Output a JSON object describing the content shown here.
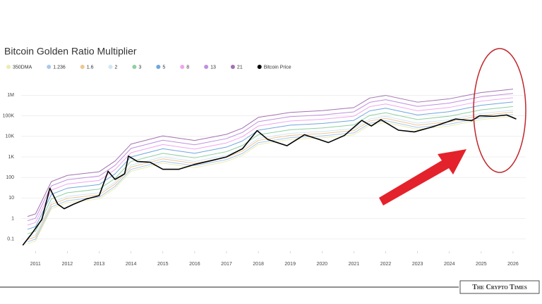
{
  "chart_data": {
    "type": "line",
    "title": "Bitcoin Golden Ratio Multiplier",
    "yscale": "log",
    "grid": true,
    "legend": "top-left",
    "xlim": [
      2010.55,
      2026.4
    ],
    "xticks": [
      2011,
      2012,
      2013,
      2014,
      2015,
      2016,
      2017,
      2018,
      2019,
      2020,
      2021,
      2022,
      2023,
      2024,
      2025,
      2026
    ],
    "ylim": [
      0.03,
      5000000
    ],
    "yticks": [
      0.1,
      1,
      10,
      100,
      {
        "value": 1000,
        "label": "1K"
      },
      {
        "value": 10000,
        "label": "10K"
      },
      {
        "value": 100000,
        "label": "100K"
      },
      {
        "value": 1000000,
        "label": "1M"
      }
    ],
    "x": [
      2010.75,
      2011,
      2011.5,
      2012,
      2013,
      2013.5,
      2014,
      2015,
      2016,
      2017,
      2017.5,
      2018,
      2019,
      2020,
      2021,
      2021.5,
      2022,
      2023,
      2024,
      2025,
      2026
    ],
    "series": [
      {
        "name": "350DMA",
        "color": "#e9eeb0",
        "values": [
          0.06,
          0.08,
          3,
          6,
          9,
          30,
          200,
          500,
          300,
          600,
          1200,
          4000,
          7000,
          8500,
          12000,
          35000,
          47000,
          22000,
          32000,
          65000,
          95000
        ]
      },
      {
        "name": "1.236",
        "color": "#a9c8ef",
        "values": [
          0.074,
          0.099,
          3.7,
          7.4,
          11,
          37,
          247,
          618,
          371,
          742,
          1483,
          4944,
          8652,
          10506,
          14832,
          43260,
          58092,
          27192,
          39552,
          80340,
          117420
        ]
      },
      {
        "name": "1.6",
        "color": "#efc791",
        "values": [
          0.096,
          0.128,
          4.8,
          9.6,
          14.4,
          48,
          320,
          800,
          480,
          960,
          1920,
          6400,
          11200,
          13600,
          19200,
          56000,
          75200,
          35200,
          51200,
          104000,
          152000
        ]
      },
      {
        "name": "2",
        "color": "#cfe6f6",
        "values": [
          0.12,
          0.16,
          6,
          12,
          18,
          60,
          400,
          1000,
          600,
          1200,
          2400,
          8000,
          14000,
          17000,
          24000,
          70000,
          94000,
          44000,
          64000,
          130000,
          190000
        ]
      },
      {
        "name": "3",
        "color": "#8fd0a0",
        "values": [
          0.18,
          0.24,
          9,
          18,
          27,
          90,
          600,
          1500,
          900,
          1800,
          3600,
          12000,
          21000,
          25500,
          36000,
          105000,
          141000,
          66000,
          96000,
          195000,
          285000
        ]
      },
      {
        "name": "5",
        "color": "#6fa7df",
        "values": [
          0.3,
          0.4,
          15,
          30,
          45,
          150,
          1000,
          2500,
          1500,
          3000,
          6000,
          20000,
          35000,
          42500,
          60000,
          175000,
          235000,
          110000,
          160000,
          325000,
          475000
        ]
      },
      {
        "name": "8",
        "color": "#efa6ef",
        "values": [
          0.48,
          0.64,
          24,
          48,
          72,
          240,
          1600,
          4000,
          2400,
          4800,
          9600,
          32000,
          56000,
          68000,
          96000,
          280000,
          376000,
          176000,
          256000,
          520000,
          760000
        ]
      },
      {
        "name": "13",
        "color": "#c08fe0",
        "values": [
          0.78,
          1.04,
          39,
          78,
          117,
          390,
          2600,
          6500,
          3900,
          7800,
          15600,
          52000,
          91000,
          110500,
          156000,
          455000,
          611000,
          286000,
          416000,
          845000,
          1235000
        ]
      },
      {
        "name": "21",
        "color": "#a271b1",
        "values": [
          1.26,
          1.68,
          63,
          126,
          189,
          630,
          4200,
          10500,
          6300,
          12600,
          25200,
          84000,
          147000,
          178500,
          252000,
          735000,
          987000,
          462000,
          672000,
          1365000,
          1995000
        ]
      },
      {
        "name": "Bitcoin Price",
        "color": "#000000",
        "x": [
          2010.6,
          2010.9,
          2011.2,
          2011.45,
          2011.7,
          2011.9,
          2012.2,
          2012.6,
          2013.0,
          2013.28,
          2013.5,
          2013.8,
          2013.92,
          2014.2,
          2014.6,
          2015.0,
          2015.5,
          2016.0,
          2016.5,
          2017.0,
          2017.5,
          2017.96,
          2018.3,
          2018.9,
          2019.45,
          2019.9,
          2020.2,
          2020.7,
          2021.25,
          2021.55,
          2021.85,
          2022.4,
          2022.9,
          2023.5,
          2024.2,
          2024.7,
          2024.95,
          2025.4,
          2025.8,
          2026.1
        ],
        "values": [
          0.05,
          0.2,
          0.9,
          30,
          5,
          3,
          5,
          9,
          13,
          200,
          80,
          150,
          1100,
          600,
          550,
          250,
          250,
          430,
          650,
          1000,
          2500,
          19000,
          7000,
          3500,
          12000,
          7200,
          5000,
          11000,
          60000,
          32000,
          65000,
          20000,
          16500,
          30000,
          70000,
          58000,
          100000,
          95000,
          110000,
          70000
        ]
      }
    ],
    "watermark": "The Crypto Times"
  }
}
